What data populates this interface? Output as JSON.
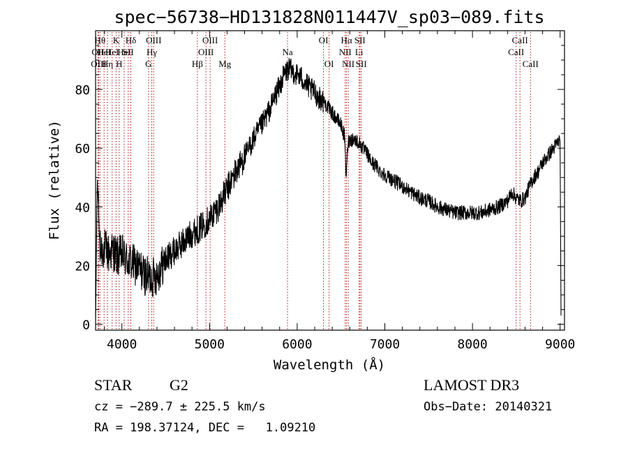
{
  "chart_data": {
    "type": "line",
    "title": "spec−56738−HD131828N011447V_sp03−089.fits",
    "xlabel": "Wavelength (Å)",
    "ylabel": "Flux (relative)",
    "xlim": [
      3700,
      9050
    ],
    "ylim": [
      -2,
      100
    ],
    "xticks": [
      4000,
      5000,
      6000,
      7000,
      8000,
      9000
    ],
    "yticks": [
      0,
      20,
      40,
      60,
      80
    ],
    "grid": false,
    "legend": "none",
    "series": [
      {
        "name": "flux",
        "x": [
          3700,
          3720,
          3750,
          3800,
          3850,
          3900,
          3950,
          4000,
          4050,
          4100,
          4150,
          4200,
          4250,
          4300,
          4350,
          4400,
          4500,
          4600,
          4700,
          4800,
          4900,
          5000,
          5100,
          5200,
          5300,
          5400,
          5500,
          5600,
          5700,
          5750,
          5800,
          5850,
          5900,
          5950,
          6000,
          6050,
          6100,
          6150,
          6200,
          6250,
          6300,
          6350,
          6400,
          6450,
          6500,
          6540,
          6560,
          6580,
          6600,
          6650,
          6700,
          6750,
          6800,
          6850,
          6900,
          6950,
          7000,
          7100,
          7200,
          7300,
          7400,
          7500,
          7600,
          7700,
          7800,
          7900,
          8000,
          8100,
          8200,
          8300,
          8400,
          8450,
          8500,
          8550,
          8600,
          8650,
          8700,
          8750,
          8800,
          8850,
          8900,
          8950,
          9000,
          9010
        ],
        "y": [
          2,
          50,
          25,
          26,
          24,
          25,
          23,
          24,
          22,
          21,
          20,
          19,
          17,
          16,
          16,
          17,
          22,
          25,
          28,
          31,
          33,
          36,
          40,
          46,
          52,
          57,
          63,
          68,
          74,
          78,
          81,
          85,
          87,
          86,
          85,
          84,
          82,
          80,
          79,
          77,
          76,
          74,
          72,
          70,
          68,
          64,
          50,
          62,
          63,
          63,
          62,
          60,
          58,
          55,
          54,
          52,
          51,
          49,
          47,
          45,
          43,
          42,
          40,
          39,
          38,
          38,
          38,
          38,
          39,
          40,
          42,
          45,
          43,
          42,
          43,
          47,
          50,
          52,
          55,
          57,
          59,
          61,
          63,
          3
        ]
      }
    ],
    "line_markers": [
      {
        "w": 3727,
        "label": "OII",
        "row": 1
      },
      {
        "w": 3735,
        "label": "OIII",
        "row": 2
      },
      {
        "w": 3750,
        "label": "Hθ",
        "row": 0
      },
      {
        "w": 3797,
        "label": "HeI",
        "row": 1
      },
      {
        "w": 3835,
        "label": "Hη",
        "row": 2
      },
      {
        "w": 3889,
        "label": "HeI",
        "row": 1
      },
      {
        "w": 3934,
        "label": "K",
        "row": 0
      },
      {
        "w": 3969,
        "label": "H",
        "row": 2
      },
      {
        "w": 4026,
        "label": "HeI",
        "row": 1
      },
      {
        "w": 4072,
        "label": "SII",
        "row": 1
      },
      {
        "w": 4102,
        "label": "Hδ",
        "row": 0
      },
      {
        "w": 4304,
        "label": "G",
        "row": 2
      },
      {
        "w": 4341,
        "label": "Hγ",
        "row": 1
      },
      {
        "w": 4363,
        "label": "OIII",
        "row": 0
      },
      {
        "w": 4861,
        "label": "Hβ",
        "row": 2
      },
      {
        "w": 4959,
        "label": "OIII",
        "row": 1
      },
      {
        "w": 5007,
        "label": "OIII",
        "row": 0
      },
      {
        "w": 5175,
        "label": "Mg",
        "row": 2
      },
      {
        "w": 5890,
        "label": "Na",
        "row": 1
      },
      {
        "w": 6300,
        "label": "OI",
        "row": 0
      },
      {
        "w": 6364,
        "label": "OI",
        "row": 2
      },
      {
        "w": 6548,
        "label": "NII",
        "row": 1
      },
      {
        "w": 6563,
        "label": "Hα",
        "row": 0
      },
      {
        "w": 6583,
        "label": "NII",
        "row": 2
      },
      {
        "w": 6707,
        "label": "Li",
        "row": 1
      },
      {
        "w": 6716,
        "label": "SII",
        "row": 0
      },
      {
        "w": 6731,
        "label": "SII",
        "row": 2
      },
      {
        "w": 8498,
        "label": "CaII",
        "row": 1
      },
      {
        "w": 8542,
        "label": "CaII",
        "row": 0
      },
      {
        "w": 8662,
        "label": "CaII",
        "row": 2
      }
    ]
  },
  "info": {
    "object_class": "STAR",
    "subclass": "G2",
    "survey": "LAMOST DR3",
    "redshift": "cz = −289.7 ± 225.5 km/s",
    "obs_date": "Obs−Date: 20140321",
    "coords": "RA = 198.37124, DEC =   1.09210"
  }
}
